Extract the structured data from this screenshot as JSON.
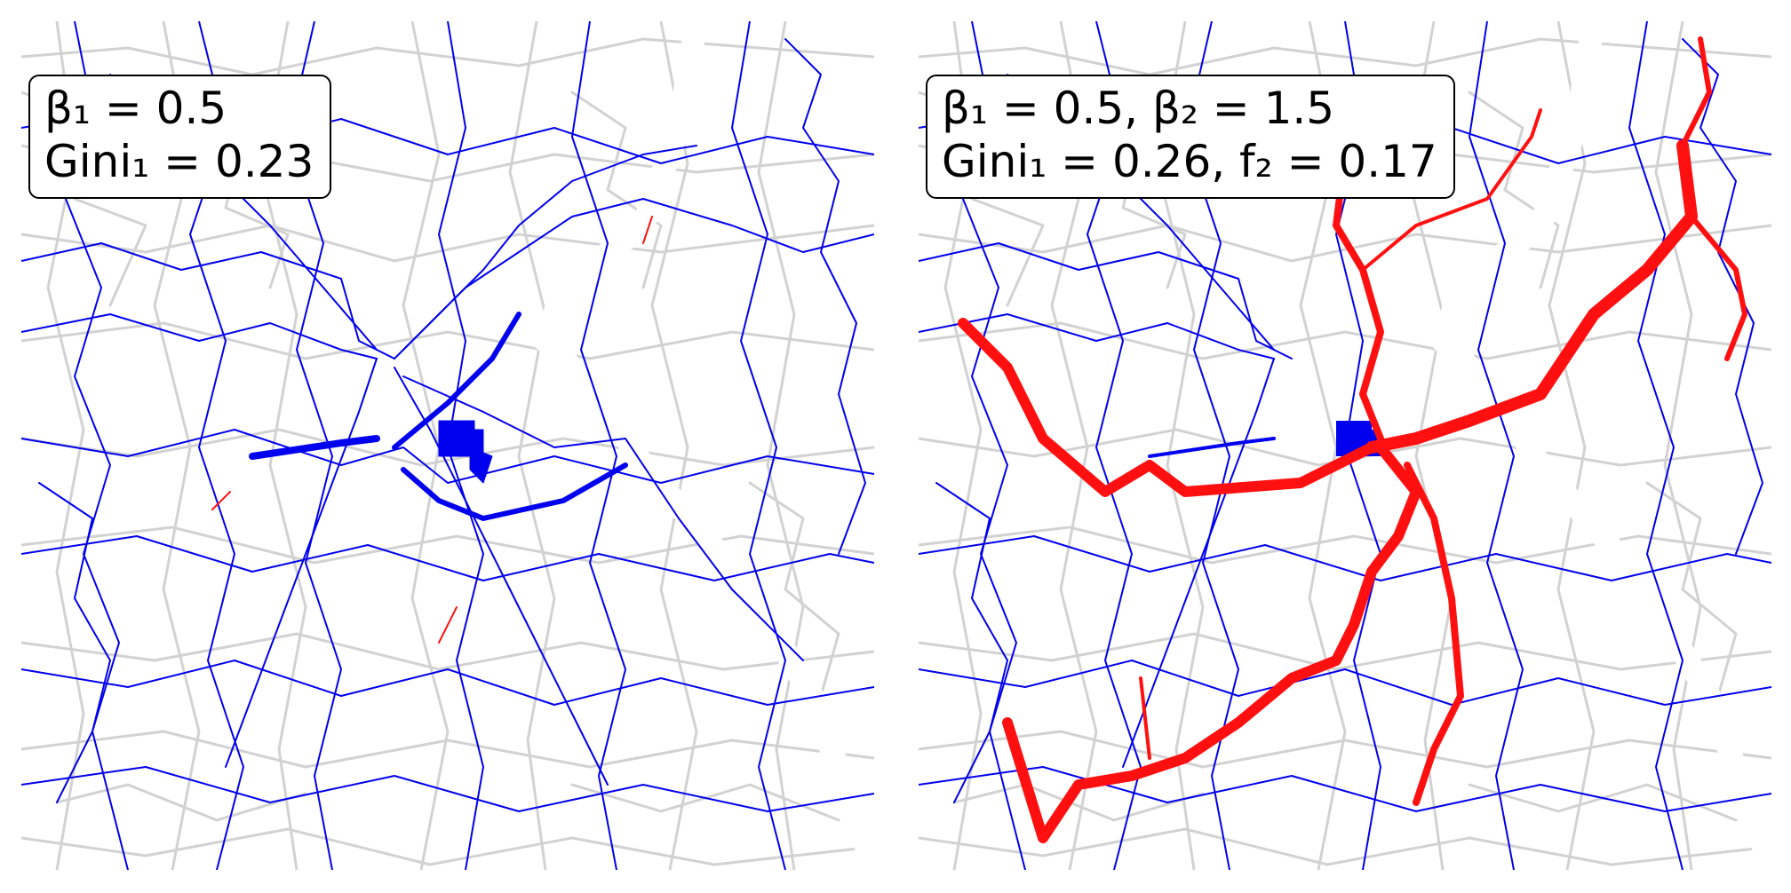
{
  "panels": [
    {
      "label_line1": "β₁ = 0.5",
      "label_line2": "Gini₁ = 0.23",
      "network_layers": [
        "base-street-map",
        "blue-network",
        "red-network"
      ]
    },
    {
      "label_line1": "β₁ = 0.5, β₂ = 1.5",
      "label_line2": "Gini₁ = 0.26, f₂ = 0.17",
      "network_layers": [
        "base-street-map",
        "blue-network",
        "red-network"
      ]
    }
  ],
  "colors": {
    "base_map": "#d2d2d2",
    "network_1": "#0000ee",
    "network_2": "#ff1010",
    "background": "#ffffff"
  }
}
